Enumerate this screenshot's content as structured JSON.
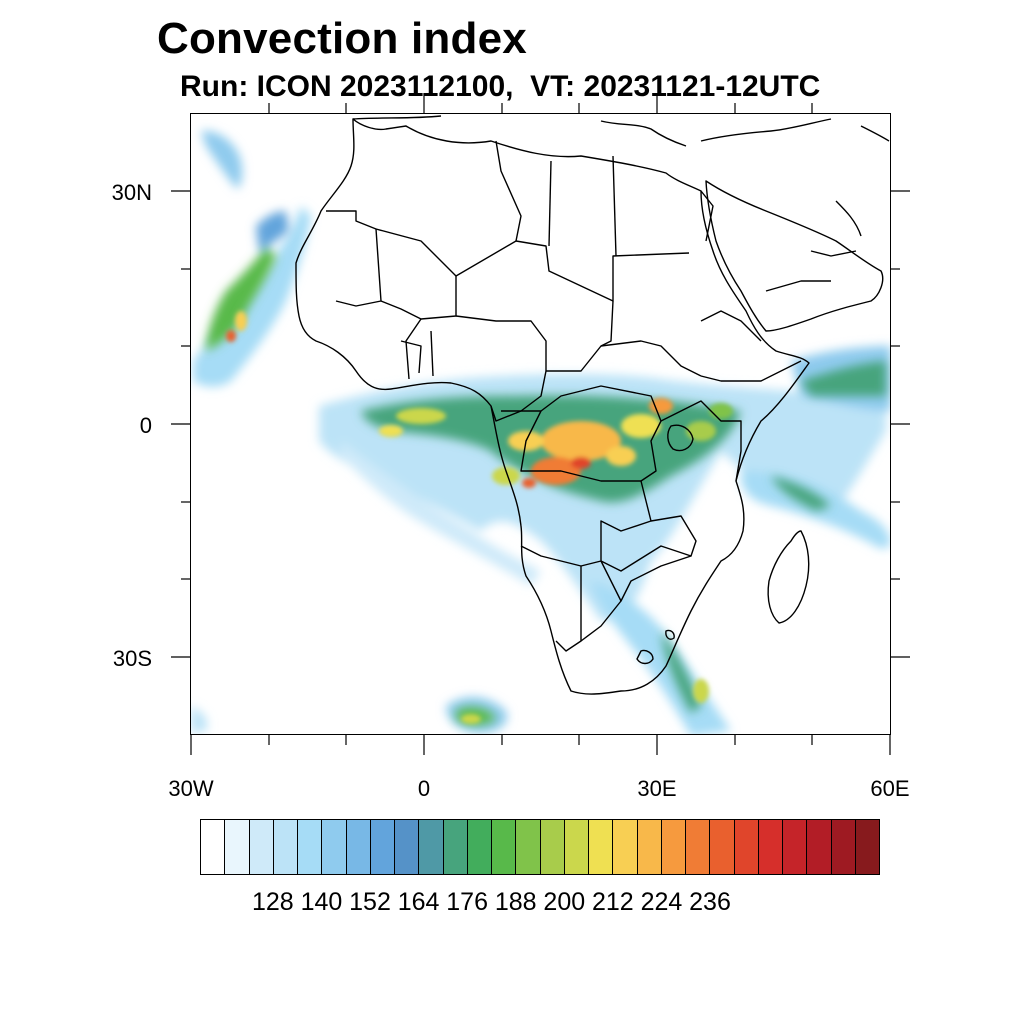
{
  "title": "Convection index",
  "subtitle": "Run: ICON 2023112100,  VT: 20231121-12UTC",
  "map": {
    "lat_labels": [
      "30N",
      "0",
      "30S"
    ],
    "lat_values": [
      30,
      0,
      -30
    ],
    "lon_labels": [
      "30W",
      "0",
      "30E",
      "60E"
    ],
    "lon_values": [
      -30,
      0,
      30,
      60
    ],
    "lon_range": [
      -30,
      60
    ],
    "lat_range": [
      -40,
      40
    ]
  },
  "colorbar": {
    "colors": [
      "#ffffff",
      "#e9f6fd",
      "#cfeaf9",
      "#bce3f7",
      "#a6dcf6",
      "#8fcbee",
      "#78b8e6",
      "#62a4dc",
      "#5592c8",
      "#4f99a6",
      "#47a47d",
      "#42ad5c",
      "#58b94a",
      "#80c34a",
      "#a8cc4b",
      "#cbd74c",
      "#efe052",
      "#f8cf53",
      "#f8b84a",
      "#f69a3e",
      "#f07c35",
      "#e9602e",
      "#e0452b",
      "#d62f2b",
      "#c52429",
      "#b21d26",
      "#9e1a22",
      "#871a1d"
    ],
    "tick_labels": [
      "128",
      "140",
      "152",
      "164",
      "176",
      "188",
      "200",
      "212",
      "224",
      "236"
    ],
    "tick_values": [
      128,
      140,
      152,
      164,
      176,
      188,
      200,
      212,
      224,
      236
    ]
  }
}
